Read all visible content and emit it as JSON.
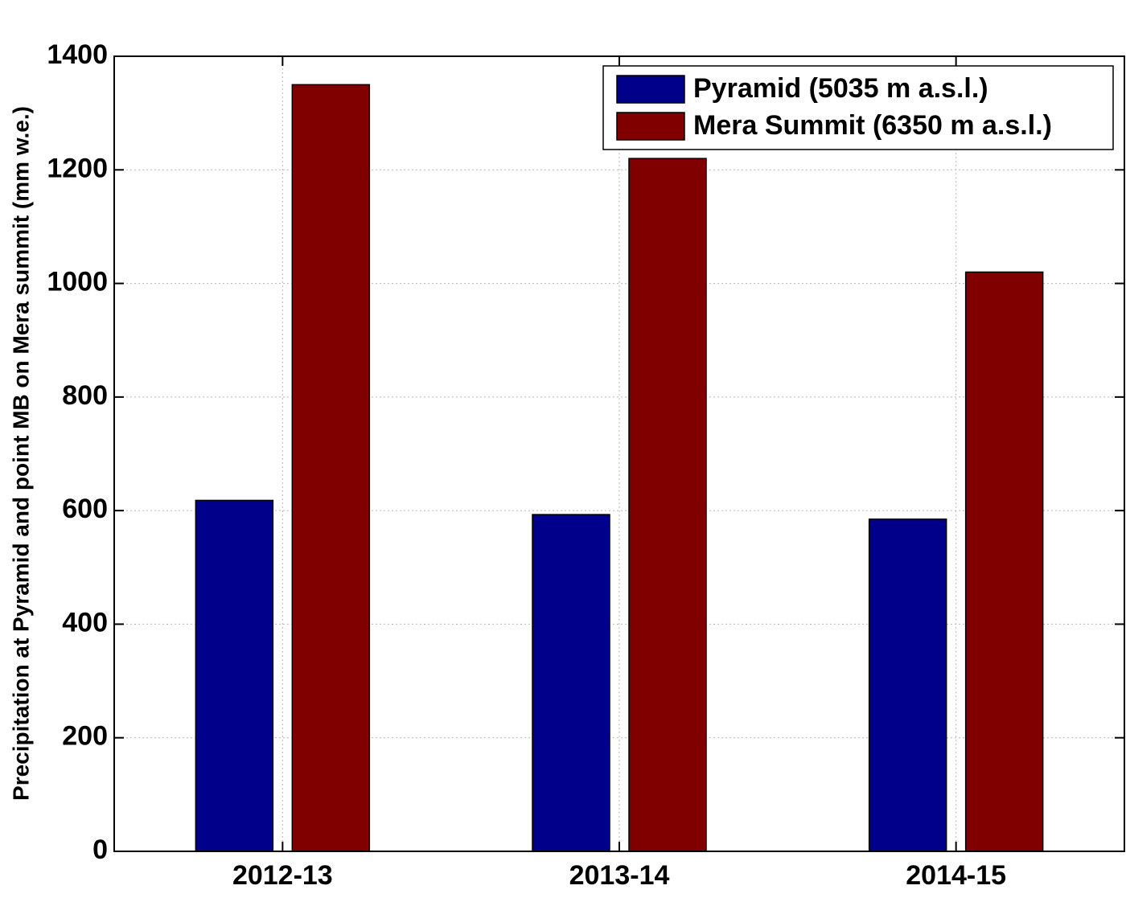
{
  "chart_data": {
    "type": "bar",
    "title": "",
    "xlabel": "",
    "ylabel": "Precipitation at Pyramid and point MB on Mera summit (mm w.e.)",
    "categories": [
      "2012-13",
      "2013-14",
      "2014-15"
    ],
    "series": [
      {
        "name": "Pyramid (5035 m a.s.l.)",
        "values": [
          618,
          593,
          585
        ],
        "color": "#00008b"
      },
      {
        "name": "Mera Summit (6350 m a.s.l.)",
        "values": [
          1350,
          1220,
          1020
        ],
        "color": "#800000"
      }
    ],
    "ylim": [
      0,
      1400
    ],
    "yticks": [
      0,
      200,
      400,
      600,
      800,
      1000,
      1200,
      1400
    ],
    "grid": true,
    "grid_style": "dotted",
    "legend_position": "top-right"
  }
}
